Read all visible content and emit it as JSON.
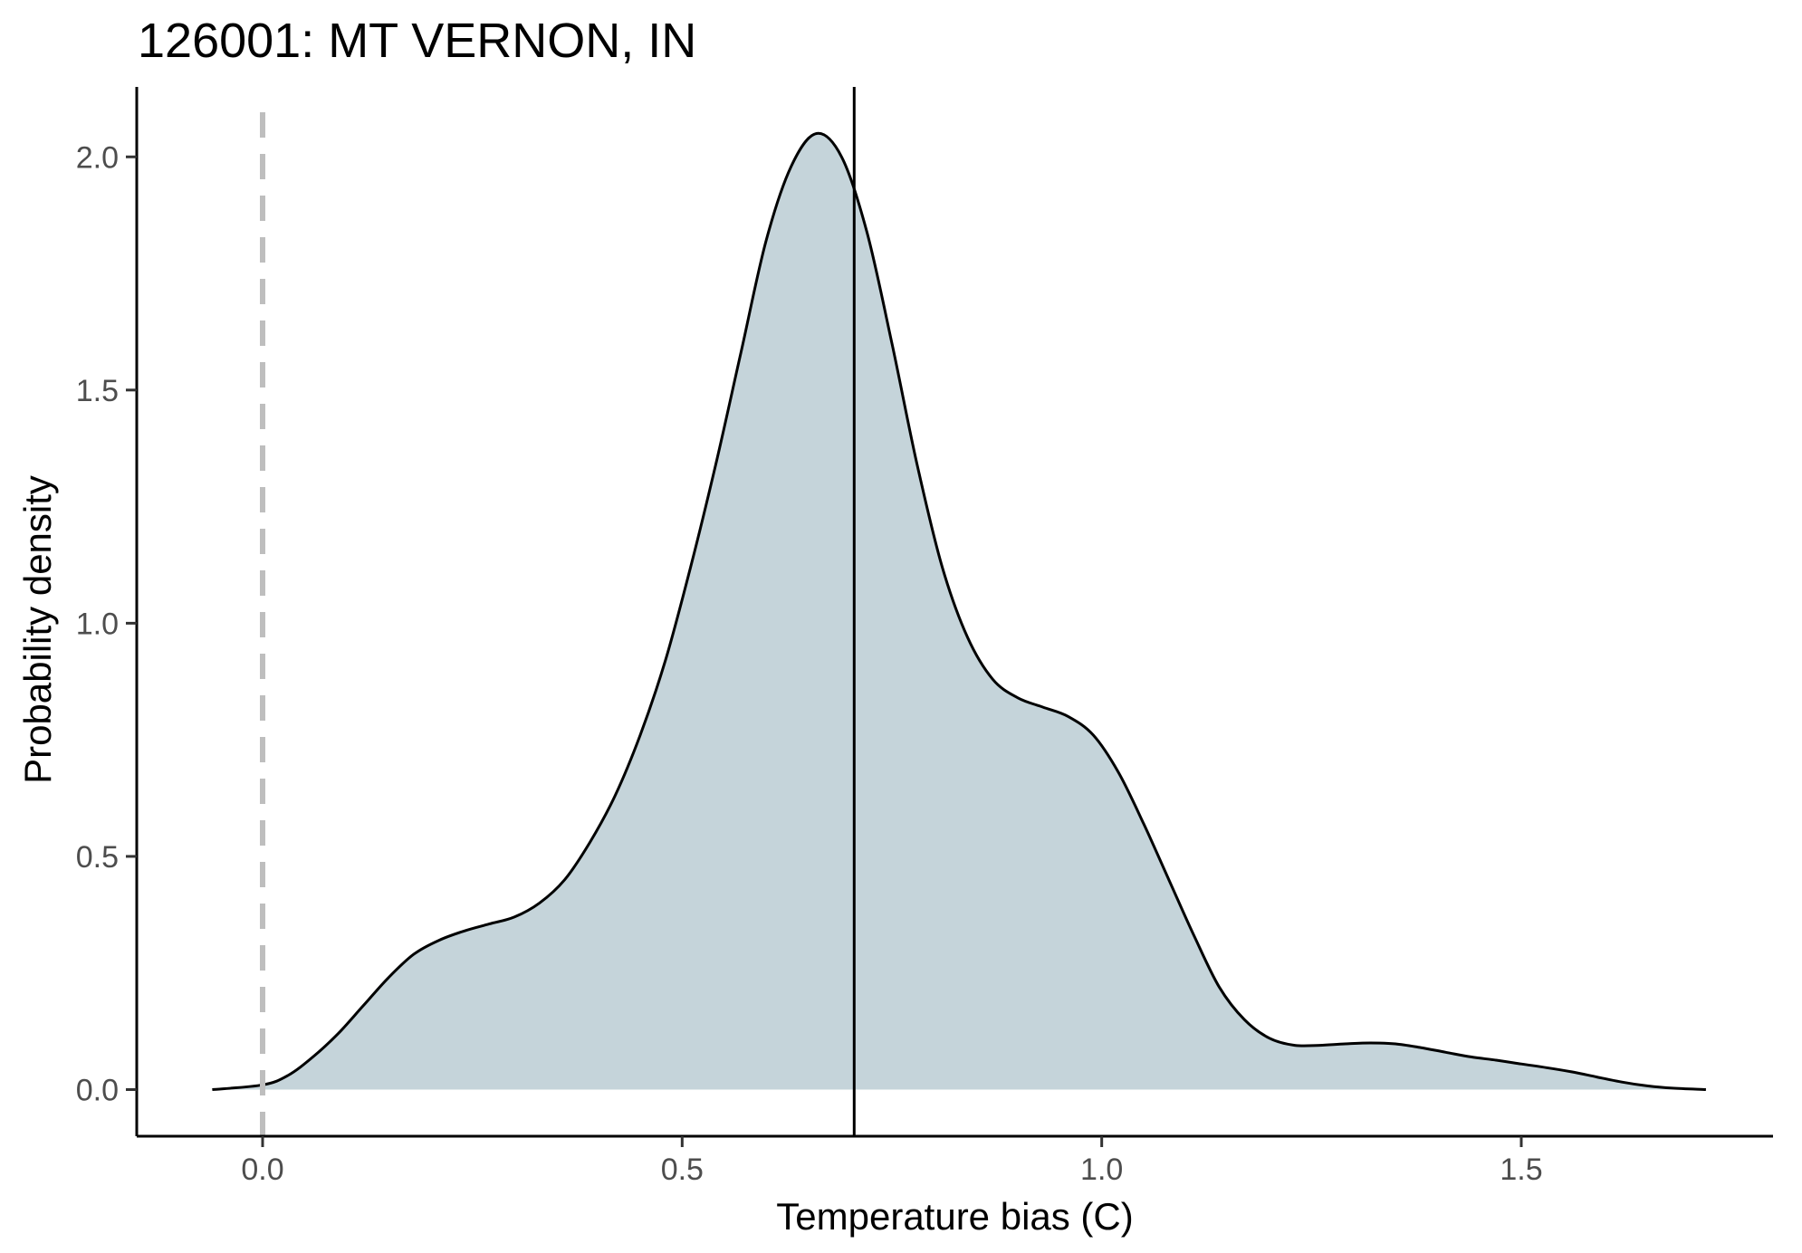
{
  "chart_data": {
    "type": "area",
    "title": "126001: MT VERNON, IN",
    "xlabel": "Temperature bias (C)",
    "ylabel": "Probability density",
    "xlim": [
      -0.15,
      1.8
    ],
    "ylim": [
      -0.1,
      2.15
    ],
    "x_ticks": [
      "0.0",
      "0.5",
      "1.0",
      "1.5"
    ],
    "y_ticks": [
      "0.0",
      "0.5",
      "1.0",
      "1.5",
      "2.0"
    ],
    "grid": false,
    "fill_color": "#c5d4da",
    "line_color": "#000000",
    "reference_line": {
      "x": 0.0,
      "style": "dashed",
      "color": "#bebebe"
    },
    "marker_line": {
      "x": 0.705,
      "style": "solid",
      "color": "#000000"
    },
    "density": {
      "x": [
        -0.06,
        0.0,
        0.03,
        0.06,
        0.09,
        0.12,
        0.15,
        0.18,
        0.21,
        0.24,
        0.27,
        0.3,
        0.33,
        0.36,
        0.39,
        0.42,
        0.45,
        0.48,
        0.51,
        0.54,
        0.57,
        0.6,
        0.63,
        0.66,
        0.69,
        0.72,
        0.75,
        0.78,
        0.81,
        0.84,
        0.87,
        0.9,
        0.93,
        0.96,
        0.99,
        1.02,
        1.05,
        1.08,
        1.11,
        1.14,
        1.17,
        1.2,
        1.23,
        1.26,
        1.29,
        1.32,
        1.35,
        1.38,
        1.41,
        1.44,
        1.47,
        1.5,
        1.53,
        1.56,
        1.59,
        1.62,
        1.65,
        1.68,
        1.72
      ],
      "y": [
        0.0,
        0.01,
        0.03,
        0.07,
        0.12,
        0.18,
        0.24,
        0.29,
        0.32,
        0.34,
        0.355,
        0.37,
        0.4,
        0.45,
        0.53,
        0.63,
        0.76,
        0.92,
        1.12,
        1.34,
        1.58,
        1.82,
        1.98,
        2.05,
        2.0,
        1.84,
        1.6,
        1.34,
        1.12,
        0.97,
        0.88,
        0.84,
        0.82,
        0.8,
        0.76,
        0.68,
        0.57,
        0.45,
        0.33,
        0.22,
        0.15,
        0.11,
        0.095,
        0.095,
        0.098,
        0.1,
        0.098,
        0.09,
        0.08,
        0.07,
        0.063,
        0.055,
        0.047,
        0.038,
        0.027,
        0.016,
        0.008,
        0.003,
        0.0
      ]
    }
  }
}
